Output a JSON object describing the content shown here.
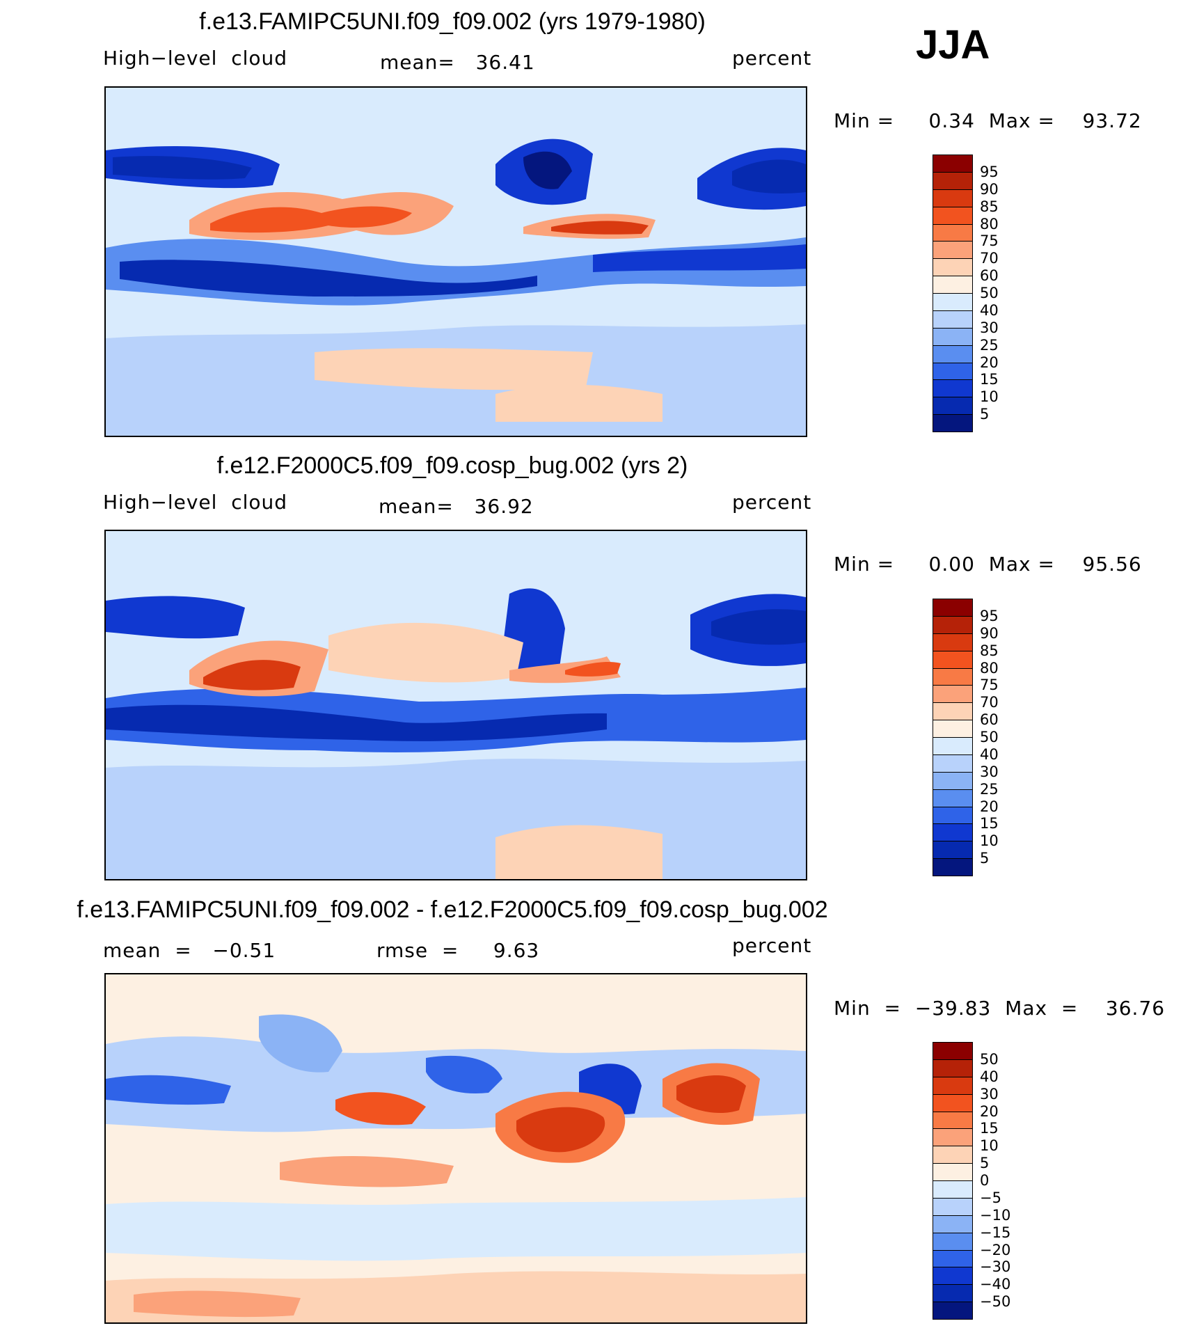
{
  "season": "JJA",
  "panels": [
    {
      "title": "f.e13.FAMIPC5UNI.f09_f09.002 (yrs 1979-1980)",
      "left_label": "High−level  cloud",
      "center_label": "mean=   36.41",
      "right_label": "percent",
      "minmax": "Min =     0.34  Max =    93.72"
    },
    {
      "title": "f.e12.F2000C5.f09_f09.cosp_bug.002 (yrs 2)",
      "left_label": "High−level  cloud",
      "center_label": "mean=   36.92",
      "right_label": "percent",
      "minmax": "Min =     0.00  Max =    95.56"
    },
    {
      "title": "f.e13.FAMIPC5UNI.f09_f09.002 - f.e12.F2000C5.f09_f09.cosp_bug.002",
      "left_label": "mean  =   −0.51",
      "center_label": "rmse  =     9.63",
      "right_label": "percent",
      "minmax": "Min  =  −39.83  Max  =    36.76"
    }
  ],
  "colorbars": {
    "abs_ticks": [
      "95",
      "90",
      "85",
      "80",
      "75",
      "70",
      "60",
      "50",
      "40",
      "30",
      "25",
      "20",
      "15",
      "10",
      "5"
    ],
    "abs_colors": [
      "#8b0000",
      "#b52208",
      "#d93a10",
      "#f2531f",
      "#f87a45",
      "#fba27a",
      "#fdd3b6",
      "#fdf0e2",
      "#d9ebfd",
      "#b8d2fb",
      "#8bb3f5",
      "#5a8ef0",
      "#2f63e8",
      "#1038d0",
      "#062ab0",
      "#04167e"
    ],
    "diff_ticks": [
      "50",
      "40",
      "30",
      "20",
      "15",
      "10",
      "5",
      "0",
      "−5",
      "−10",
      "−15",
      "−20",
      "−30",
      "−40",
      "−50"
    ],
    "diff_colors": [
      "#8b0000",
      "#b52208",
      "#d93a10",
      "#f2531f",
      "#f87a45",
      "#fba27a",
      "#fdd3b6",
      "#fdf0e2",
      "#d9ebfd",
      "#b8d2fb",
      "#8bb3f5",
      "#5a8ef0",
      "#2f63e8",
      "#1038d0",
      "#062ab0",
      "#04167e"
    ]
  }
}
